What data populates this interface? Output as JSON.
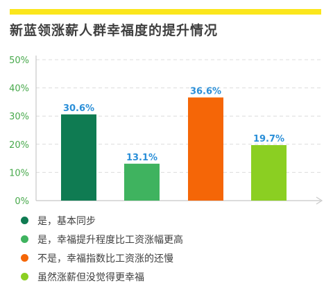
{
  "title": "新蓝领涨薪人群幸福度的提升情况",
  "accent_color": "#fbe61c",
  "chart_data": {
    "type": "bar",
    "categories": [
      "是，基本同步",
      "是，幸福提升程度比工资涨幅更高",
      "不是，幸福指数比工资涨的还慢",
      "虽然涨薪但没觉得更幸福"
    ],
    "values": [
      30.6,
      13.1,
      36.6,
      19.7
    ],
    "value_labels": [
      "30.6%",
      "13.1%",
      "36.6%",
      "19.7%"
    ],
    "colors": [
      "#0f7b52",
      "#3fb35f",
      "#f56607",
      "#8bcf22"
    ],
    "ylim": [
      0,
      50
    ],
    "yticks": [
      0,
      10,
      20,
      30,
      40,
      50
    ],
    "ytick_labels": [
      "0%",
      "10%",
      "20%",
      "30%",
      "40%",
      "50%"
    ],
    "value_label_color": "#2b8fd8",
    "grid": true,
    "legend_position": "bottom-left"
  }
}
